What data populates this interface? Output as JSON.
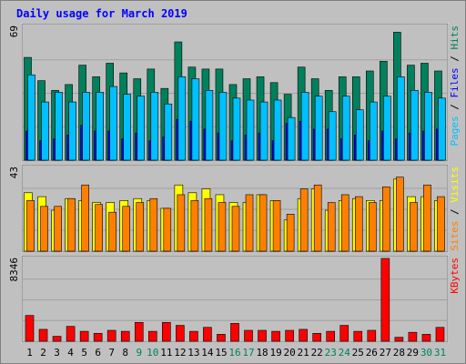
{
  "title": "Daily usage for March 2019",
  "colors": {
    "background": "#c0c0c0",
    "title": "#0000ff",
    "hits": "#00805c",
    "files": "#0000ff",
    "pages": "#00c0ff",
    "visits": "#ffff00",
    "sites": "#ff8000",
    "kbytes": "#ff0000",
    "weekday_label": "#000000",
    "weekend_label": "#00805c",
    "grid": "#a0a0a0"
  },
  "chart_data": [
    {
      "type": "bar",
      "panel": "top",
      "ymax_label": "69",
      "ylim": [
        0,
        69
      ],
      "x": [
        1,
        2,
        3,
        4,
        5,
        6,
        7,
        8,
        9,
        10,
        11,
        12,
        13,
        14,
        15,
        16,
        17,
        18,
        19,
        20,
        21,
        22,
        23,
        24,
        25,
        26,
        27,
        28,
        29,
        30,
        31
      ],
      "series": [
        {
          "name": "Hits",
          "values": [
            53,
            41,
            36,
            39,
            49,
            43,
            50,
            45,
            42,
            47,
            37,
            61,
            48,
            47,
            47,
            39,
            42,
            43,
            40,
            34,
            48,
            42,
            36,
            43,
            43,
            46,
            51,
            66,
            49,
            50,
            46
          ]
        },
        {
          "name": "Files",
          "values": [
            15,
            10,
            11,
            13,
            18,
            15,
            15,
            11,
            14,
            10,
            12,
            21,
            20,
            16,
            14,
            10,
            13,
            14,
            10,
            19,
            20,
            16,
            16,
            11,
            13,
            10,
            15,
            11,
            14,
            15,
            16
          ]
        },
        {
          "name": "Pages",
          "values": [
            44,
            30,
            35,
            30,
            35,
            35,
            38,
            34,
            33,
            35,
            29,
            43,
            42,
            36,
            35,
            32,
            31,
            30,
            31,
            22,
            35,
            33,
            25,
            33,
            26,
            30,
            33,
            43,
            36,
            35,
            32
          ]
        }
      ]
    },
    {
      "type": "bar",
      "panel": "middle",
      "ymax_label": "43",
      "ylim": [
        0,
        43
      ],
      "x": [
        1,
        2,
        3,
        4,
        5,
        6,
        7,
        8,
        9,
        10,
        11,
        12,
        13,
        14,
        15,
        16,
        17,
        18,
        19,
        20,
        21,
        22,
        23,
        24,
        25,
        26,
        27,
        28,
        29,
        30,
        31
      ],
      "series": [
        {
          "name": "Visits",
          "values": [
            30,
            28,
            21,
            27,
            26,
            25,
            25,
            26,
            27,
            26,
            22,
            34,
            30,
            32,
            29,
            25,
            25,
            29,
            26,
            16,
            27,
            32,
            21,
            26,
            27,
            26,
            26,
            37,
            28,
            28,
            26
          ]
        },
        {
          "name": "Sites",
          "values": [
            26,
            23,
            23,
            27,
            34,
            24,
            20,
            23,
            25,
            27,
            22,
            29,
            26,
            27,
            25,
            23,
            29,
            29,
            26,
            19,
            32,
            34,
            25,
            29,
            28,
            25,
            33,
            38,
            25,
            34,
            28
          ]
        }
      ]
    },
    {
      "type": "bar",
      "panel": "bottom",
      "ymax_label": "8346",
      "ylim": [
        0,
        8346
      ],
      "x": [
        1,
        2,
        3,
        4,
        5,
        6,
        7,
        8,
        9,
        10,
        11,
        12,
        13,
        14,
        15,
        16,
        17,
        18,
        19,
        20,
        21,
        22,
        23,
        24,
        25,
        26,
        27,
        28,
        29,
        30,
        31
      ],
      "series": [
        {
          "name": "KBytes",
          "values": [
            2600,
            1200,
            500,
            1500,
            1000,
            800,
            1100,
            1000,
            1900,
            1000,
            1900,
            1600,
            1000,
            1400,
            700,
            1800,
            1100,
            1100,
            1000,
            1100,
            1200,
            800,
            1000,
            1600,
            1000,
            1100,
            8346,
            400,
            900,
            700,
            1400
          ]
        }
      ]
    }
  ],
  "weekend_days": [
    9,
    10,
    16,
    17,
    23,
    24,
    30,
    31
  ],
  "right_labels": {
    "top": [
      {
        "text": "Pages",
        "color": "#00c0ff"
      },
      {
        "text": " / ",
        "color": "#000000"
      },
      {
        "text": "Files",
        "color": "#0000ff"
      },
      {
        "text": " / ",
        "color": "#000000"
      },
      {
        "text": "Hits",
        "color": "#00805c"
      }
    ],
    "middle": [
      {
        "text": "Sites",
        "color": "#ff8000"
      },
      {
        "text": " / ",
        "color": "#000000"
      },
      {
        "text": "Visits",
        "color": "#ffff00"
      }
    ],
    "bottom": [
      {
        "text": "KBytes",
        "color": "#ff0000"
      }
    ]
  }
}
